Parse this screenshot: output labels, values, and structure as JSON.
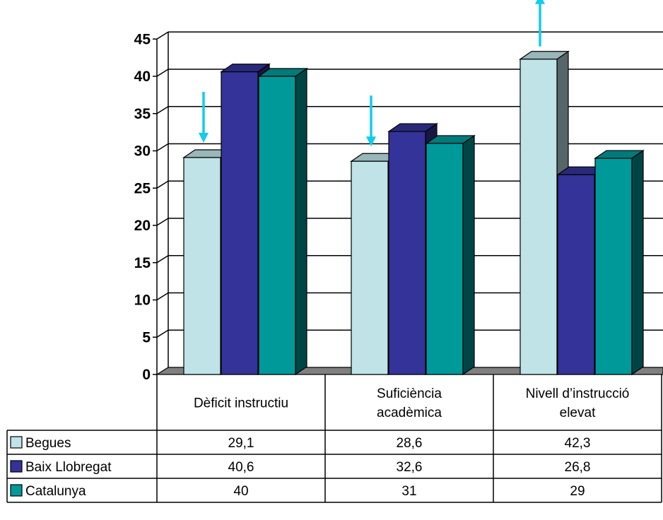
{
  "chart_data": {
    "type": "bar",
    "style": "3d-clustered-column-with-data-table",
    "categories": [
      [
        "Dèficit instructiu"
      ],
      [
        "Suficiència",
        "acadèmica"
      ],
      [
        "Nivell d’instrucció",
        "elevat"
      ]
    ],
    "series": [
      {
        "name": "Begues",
        "values": [
          29.1,
          28.6,
          42.3
        ],
        "display": [
          "29,1",
          "28,6",
          "42,3"
        ],
        "color": "#bfe3e6"
      },
      {
        "name": "Baix Llobregat",
        "values": [
          40.6,
          32.6,
          26.8
        ],
        "display": [
          "40,6",
          "32,6",
          "26,8"
        ],
        "color": "#333399"
      },
      {
        "name": "Catalunya",
        "values": [
          40,
          31,
          29
        ],
        "display": [
          "40",
          "31",
          "29"
        ],
        "color": "#009999"
      }
    ],
    "ylim": [
      0,
      45
    ],
    "yticks": [
      "0",
      "5",
      "10",
      "15",
      "20",
      "25",
      "30",
      "35",
      "40",
      "45"
    ],
    "grid": true,
    "legend": "data-table-left",
    "annotations": [
      {
        "category_index": 0,
        "series": "Begues",
        "arrow": "down",
        "color": "#11ccee"
      },
      {
        "category_index": 1,
        "series": "Begues",
        "arrow": "down",
        "color": "#11ccee"
      },
      {
        "category_index": 2,
        "series": "Begues",
        "arrow": "up",
        "color": "#11ccee"
      }
    ]
  }
}
